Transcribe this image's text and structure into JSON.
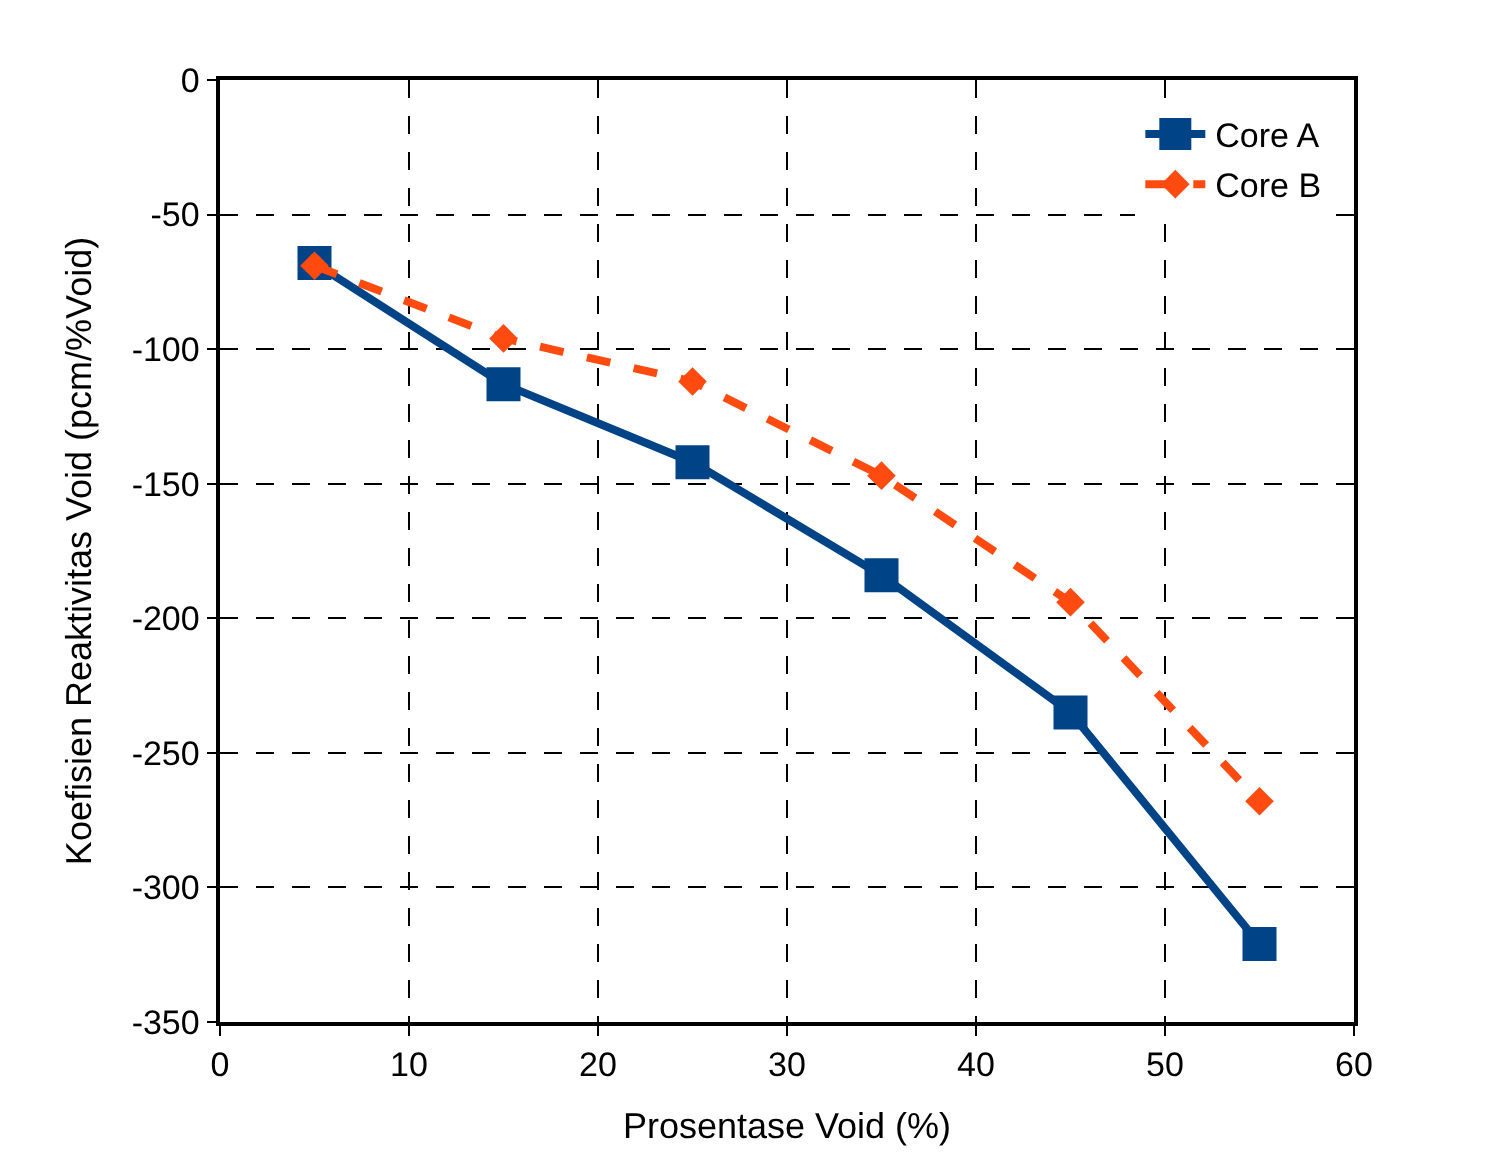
{
  "chart_data": {
    "type": "line",
    "xlabel": "Prosentase Void (%)",
    "ylabel": "Koefisien Reaktivitas Void (pcm/%Void)",
    "x": [
      5,
      15,
      25,
      35,
      45,
      55
    ],
    "series": [
      {
        "name": "Core A",
        "color": "#004386",
        "values": [
          -68,
          -113,
          -142,
          -184,
          -235,
          -321
        ],
        "marker": "square",
        "line_style": "solid"
      },
      {
        "name": "Core B",
        "color": "#ff4a10",
        "values": [
          -69,
          -96,
          -112,
          -147,
          -194,
          -268
        ],
        "marker": "diamond",
        "line_style": "dashed"
      }
    ],
    "xlim": [
      0,
      60
    ],
    "xticks": [
      0,
      10,
      20,
      30,
      40,
      50,
      60
    ],
    "ylim": [
      -350,
      0
    ],
    "yticks": [
      -350,
      -300,
      -250,
      -200,
      -150,
      -100,
      -50,
      0
    ],
    "grid": true,
    "legend": "top right"
  }
}
